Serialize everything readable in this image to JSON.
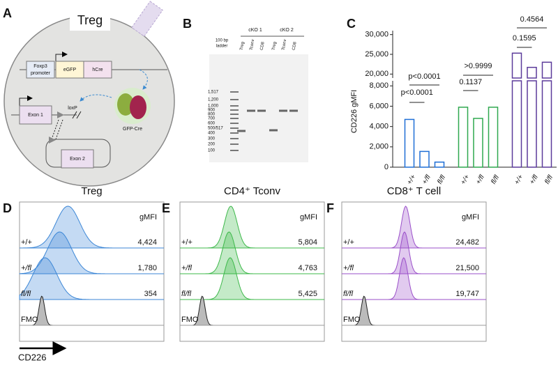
{
  "panel_a": {
    "label": "A",
    "cell": "Treg",
    "promoter": [
      "Foxp3",
      "promoter"
    ],
    "egfp": "eGFP",
    "hcre": "hCre",
    "exon1": "Exon 1",
    "loxp": "loxP",
    "exon2": "Exon 2",
    "gfp_cre": "GFP-Cre"
  },
  "panel_b": {
    "label": "B",
    "groups": [
      "cKO 1",
      "cKO 2"
    ],
    "ladder_title": [
      "100 bp",
      "ladder"
    ],
    "lanes": [
      "Treg",
      "Tconv",
      "CD8",
      "Treg",
      "Tconv",
      "CD8"
    ],
    "ladder_sizes": [
      "1,517",
      "1,200",
      "1,000",
      "900",
      "800",
      "700",
      "600",
      "500/517",
      "400",
      "300",
      "200",
      "100"
    ]
  },
  "panel_c": {
    "label": "C",
    "chart_data": {
      "type": "broken_bar",
      "y_label": "CD226 gMFI",
      "categories": [
        "+/+",
        "+/fl",
        "fl/fl"
      ],
      "ylim_lower": [
        0,
        8500
      ],
      "ylim_upper": [
        19000,
        31000
      ],
      "yticks_lower": [
        0,
        {
          "value": 2000,
          "label": "2,000"
        },
        {
          "value": 4000,
          "label": "4,000"
        },
        {
          "value": 6000,
          "label": "6,000"
        },
        {
          "value": 8000,
          "label": "8,000"
        }
      ],
      "yticks_upper": [
        {
          "value": 20000,
          "label": "20,000"
        },
        {
          "value": 25000,
          "label": "25,000"
        },
        {
          "value": 30000,
          "label": "30,000"
        }
      ],
      "series": [
        {
          "color": "#1f6fd6",
          "values": [
            4700,
            1550,
            500
          ],
          "comparisons": [
            "p<0.0001",
            "p<0.0001"
          ]
        },
        {
          "color": "#2fa84f",
          "values": [
            5900,
            4800,
            5900
          ],
          "comparisons": [
            "0.1137",
            ">0.9999"
          ]
        },
        {
          "color": "#5b3a9a",
          "values": [
            25300,
            21700,
            23000
          ],
          "comparisons": [
            "0.1595",
            "0.4564"
          ]
        }
      ]
    }
  },
  "histograms": [
    {
      "label": "D",
      "title": "Treg",
      "x_label": "CD226",
      "header": "gMFI",
      "rows": [
        "+/+",
        "+/fl",
        "fl/fl",
        "FMO"
      ],
      "values": [
        4424,
        1780,
        354
      ],
      "value_labels": [
        "4,424",
        "1,780",
        "354"
      ],
      "color": "#3b86d6"
    },
    {
      "label": "E",
      "title": "CD4⁺ Tconv",
      "header": "gMFI",
      "rows": [
        "+/+",
        "+/fl",
        "fl/fl",
        "FMO"
      ],
      "values": [
        5804,
        4763,
        5425
      ],
      "value_labels": [
        "5,804",
        "4,763",
        "5,425"
      ],
      "color": "#3db84a"
    },
    {
      "label": "F",
      "title": "CD8⁺ T cell",
      "header": "gMFI",
      "rows": [
        "+/+",
        "+/fl",
        "fl/fl",
        "FMO"
      ],
      "values": [
        24482,
        21500,
        19747
      ],
      "value_labels": [
        "24,482",
        "21,500",
        "19,747"
      ],
      "color": "#9a4fc9"
    }
  ]
}
